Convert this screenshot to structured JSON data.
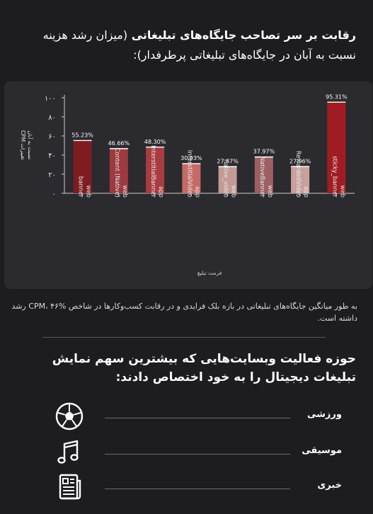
{
  "header": {
    "title_bold": "رقابت بر سر تصاحب جایگاه‌های تبلیغاتی",
    "title_light": "(میزان رشد هزینه نسبت به آبان در جایگاه‌های تبلیغاتی پرطرفدار):"
  },
  "chart_data": {
    "type": "bar",
    "categories": [
      [
        "banner",
        "web"
      ],
      [
        "Content (Native)",
        "web"
      ],
      [
        "InterstitialBanner",
        "app"
      ],
      [
        "InterstitialVideo",
        "app"
      ],
      [
        "native_video",
        "web"
      ],
      [
        "NativeBanner",
        "web"
      ],
      [
        "RewardedVideo",
        "app"
      ],
      [
        "sticky_banner",
        "web"
      ]
    ],
    "values": [
      55.23,
      46.66,
      48.3,
      30.93,
      27.87,
      37.97,
      27.96,
      95.31
    ],
    "value_labels": [
      "55.23%",
      "46.66%",
      "48.30%",
      "30.93%",
      "27.87%",
      "37.97%",
      "27.96%",
      "95.31%"
    ],
    "bar_colors": [
      "#7e1c21",
      "#9c3a3f",
      "#a83c41",
      "#c56a64",
      "#c39a96",
      "#9c5f62",
      "#c9a19c",
      "#a01c22"
    ],
    "ylim": [
      0,
      100
    ],
    "yticks": [
      "۰",
      "۲۰",
      "۴۰",
      "۶۰",
      "۸۰",
      "۱۰۰"
    ],
    "ylabel_line1": "CPM تغییرات",
    "ylabel_line2": "نسبت به آبان",
    "xlabel": "فرمت تبلیغ",
    "grid": false
  },
  "note": {
    "text": "به طور میانگین جایگاه‌های تبلیغاتی در بازه بلک فرایدی و در رقابت کسب‌وکارها در شاخص CPM، ۴۶% رشد داشته است."
  },
  "section": {
    "title": "حوزه فعالیت وبسایت‌هایی که بیشترین سهم نمایش تبلیغات دیجیتال را به خود اختصاص دادند:"
  },
  "categories": [
    {
      "label": "ورزشی",
      "icon": "soccer-ball-icon"
    },
    {
      "label": "موسیقی",
      "icon": "music-note-icon"
    },
    {
      "label": "خبری",
      "icon": "newspaper-icon"
    }
  ]
}
